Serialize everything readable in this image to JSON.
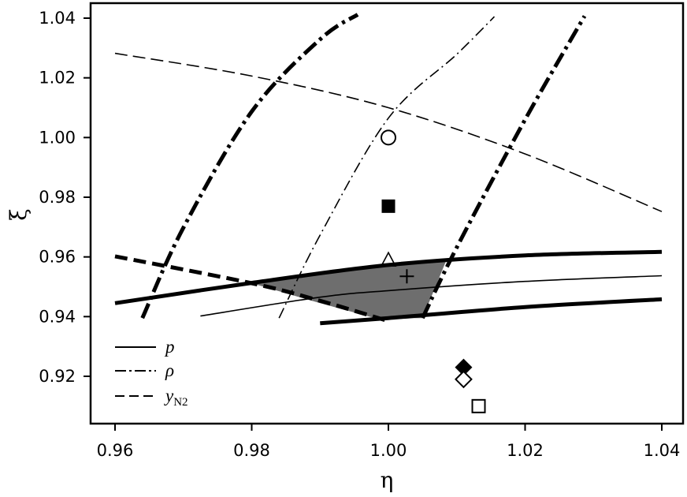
{
  "chart_data": {
    "type": "line",
    "xlabel": "η",
    "ylabel": "ξ",
    "xlim": [
      0.96,
      1.04
    ],
    "ylim": [
      0.91,
      1.04
    ],
    "x_ticks": [
      "0.96",
      "0.98",
      "1.00",
      "1.02",
      "1.04"
    ],
    "y_ticks": [
      "0.92",
      "0.94",
      "0.96",
      "0.98",
      "1.00",
      "1.02",
      "1.04"
    ],
    "grid": false,
    "legend_position": "bottom-left",
    "legend": [
      {
        "label": "p",
        "sub": "",
        "dash": "solid"
      },
      {
        "label": "ρ",
        "sub": "",
        "dash": "dashdot"
      },
      {
        "label": "y",
        "sub": "N2",
        "dash": "dashed"
      }
    ],
    "series": [
      {
        "group": "p",
        "role": "band-upper",
        "dash": "solid",
        "weight": "thick",
        "x": [
          0.96,
          0.98,
          1.0,
          1.02,
          1.04
        ],
        "y": [
          0.9445,
          0.9513,
          0.9573,
          0.9605,
          0.9617
        ]
      },
      {
        "group": "p",
        "role": "band-center",
        "dash": "solid",
        "weight": "thin",
        "x": [
          0.9725,
          0.99,
          1.0,
          1.02,
          1.04
        ],
        "y": [
          0.9402,
          0.9465,
          0.9487,
          0.9518,
          0.9537
        ]
      },
      {
        "group": "p",
        "role": "band-lower",
        "dash": "solid",
        "weight": "thick",
        "x": [
          0.99,
          1.0,
          1.02,
          1.04
        ],
        "y": [
          0.9378,
          0.9395,
          0.9432,
          0.9458
        ]
      },
      {
        "group": "rho",
        "role": "band-left",
        "dash": "dashdot",
        "weight": "thick",
        "x": [
          0.964,
          0.97,
          0.98,
          0.99,
          0.9955
        ],
        "y": [
          0.9395,
          0.9698,
          1.0087,
          1.0329,
          1.0412
        ]
      },
      {
        "group": "rho",
        "role": "band-center",
        "dash": "dashdot",
        "weight": "thin",
        "x": [
          0.984,
          0.99,
          1.0,
          1.01,
          1.0155
        ],
        "y": [
          0.9395,
          0.9673,
          1.0065,
          1.0279,
          1.0405
        ]
      },
      {
        "group": "rho",
        "role": "band-right",
        "dash": "dashdot",
        "weight": "thick",
        "x": [
          1.005,
          1.01,
          1.02,
          1.0287
        ],
        "y": [
          0.9395,
          0.9632,
          1.006,
          1.0407
        ]
      },
      {
        "group": "yN2",
        "role": "band-upper",
        "dash": "dashed",
        "weight": "thin",
        "x": [
          0.96,
          0.98,
          1.0,
          1.02,
          1.04
        ],
        "y": [
          1.0282,
          1.0206,
          1.01,
          0.9945,
          0.9752
        ]
      },
      {
        "group": "yN2",
        "role": "band-lower",
        "dash": "dashed",
        "weight": "thick",
        "x": [
          0.96,
          0.98,
          0.99,
          1.0
        ],
        "y": [
          0.9602,
          0.9512,
          0.9453,
          0.9385
        ]
      }
    ],
    "feasible_region": {
      "fill": "#6e6e6e",
      "x": [
        0.9795,
        0.99,
        1.0,
        1.0085,
        1.005,
        1.0,
        0.9985,
        0.99
      ],
      "y": [
        0.9515,
        0.9545,
        0.9573,
        0.959,
        0.9395,
        0.9395,
        0.9392,
        0.9445
      ]
    },
    "points": [
      {
        "x": 1.0,
        "y": 1.0,
        "marker": "circle-open"
      },
      {
        "x": 1.0,
        "y": 0.977,
        "marker": "square-filled"
      },
      {
        "x": 1.0,
        "y": 0.9588,
        "marker": "triangle-open"
      },
      {
        "x": 1.0027,
        "y": 0.9535,
        "marker": "plus"
      },
      {
        "x": 1.011,
        "y": 0.923,
        "marker": "diamond-filled"
      },
      {
        "x": 1.011,
        "y": 0.919,
        "marker": "diamond-open"
      },
      {
        "x": 1.0132,
        "y": 0.91,
        "marker": "square-open"
      }
    ]
  }
}
